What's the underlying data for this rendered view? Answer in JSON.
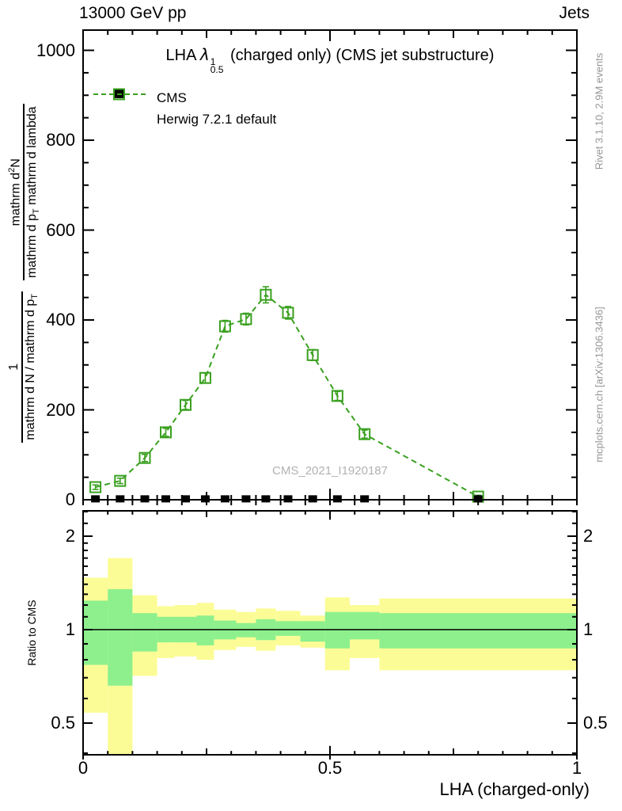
{
  "header": {
    "left": "13000 GeV pp",
    "right": "Jets"
  },
  "title": {
    "prefix": "LHA ",
    "lambda": "λ",
    "sup": "1",
    "sub": "0.5",
    "suffix": " (charged only) (CMS jet substructure)"
  },
  "legend": [
    {
      "label": "CMS",
      "marker": "filled-square",
      "color": "#000000"
    },
    {
      "label": "Herwig 7.2.1 default",
      "marker": "open-square-dashed",
      "color": "#3aa020"
    }
  ],
  "watermark": "CMS_2021_I1920187",
  "side_notes": {
    "top_right": "Rivet 3.1.10,  2.9M events",
    "bottom_right": "mcplots.cern.ch [arXiv:1306.3436]"
  },
  "ylabel_main": {
    "frac1_num": "1",
    "frac1_den_text": "mathrm d N / mathrm d p",
    "frac1_den_sub": "T",
    "frac2_num_a": "mathrm d",
    "frac2_num_sup": "2",
    "frac2_num_b": "N",
    "frac2_den_a": "mathrm d p",
    "frac2_den_sub": "T",
    "frac2_den_b": " mathrm d lambda"
  },
  "ylabel_ratio": "Ratio to CMS",
  "xlabel": "LHA (charged-only)",
  "colors": {
    "herwig": "#3aa020",
    "cms": "#000000",
    "band_yellow": "#fcfc96",
    "band_green": "#8df08d",
    "gray_text": "#969696"
  },
  "chart_data": {
    "type": "line",
    "title": "LHA lambda^1_0.5 (charged only) (CMS jet substructure)",
    "xlabel": "LHA (charged-only)",
    "xlim": [
      0,
      1
    ],
    "xticks_major": [
      0,
      0.5,
      1
    ],
    "xtick_labels": [
      "0",
      "0.5",
      "1"
    ],
    "xticks_medium": [
      0.25,
      0.75
    ],
    "xtick_minor_step": 0.05,
    "main_panel": {
      "ylim": [
        0,
        1045
      ],
      "yticks": [
        0,
        200,
        400,
        600,
        800,
        1000
      ],
      "ytick_labels": [
        "0",
        "200",
        "400",
        "600",
        "800",
        "1000"
      ],
      "ytick_minor_step": 50,
      "series": [
        {
          "name": "CMS",
          "type": "scatter",
          "marker": "filled-square",
          "color": "#000000",
          "x": [
            0.025,
            0.075,
            0.125,
            0.1675,
            0.2075,
            0.2475,
            0.2875,
            0.33,
            0.37,
            0.415,
            0.465,
            0.515,
            0.57,
            0.8
          ],
          "y": [
            2,
            2,
            2,
            2,
            2,
            2,
            2,
            2,
            2,
            2,
            2,
            2,
            2,
            2
          ]
        },
        {
          "name": "Herwig 7.2.1 default",
          "type": "line-dashed",
          "marker": "open-square",
          "color": "#3aa020",
          "x": [
            0.025,
            0.075,
            0.125,
            0.1675,
            0.2075,
            0.2475,
            0.2875,
            0.33,
            0.37,
            0.415,
            0.465,
            0.515,
            0.57,
            0.8
          ],
          "y": [
            28,
            42,
            93,
            150,
            211,
            271,
            386,
            402,
            456,
            416,
            322,
            231,
            146,
            7
          ],
          "yerr": [
            5,
            6,
            8,
            9,
            10,
            11,
            13,
            13,
            18,
            14,
            12,
            10,
            9,
            3
          ]
        }
      ]
    },
    "ratio_panel": {
      "ylabel": "Ratio to CMS",
      "yscale": "log",
      "ylim": [
        0.395,
        2.41
      ],
      "yticks": [
        0.5,
        1,
        2
      ],
      "ytick_labels": [
        "0.5",
        "1",
        "2"
      ],
      "yticks_minor": [
        0.4,
        0.6,
        0.7,
        0.8,
        0.9,
        1.1,
        1.2,
        1.3,
        1.4,
        1.5,
        1.6,
        1.7,
        1.8,
        1.9,
        2.2,
        2.4
      ],
      "reference_line": 1,
      "bin_edges": [
        0,
        0.05,
        0.1,
        0.15,
        0.185,
        0.23,
        0.265,
        0.31,
        0.35,
        0.39,
        0.44,
        0.49,
        0.54,
        0.6,
        1.0
      ],
      "bands": {
        "yellow_high": [
          1.47,
          1.7,
          1.29,
          1.19,
          1.2,
          1.22,
          1.16,
          1.14,
          1.17,
          1.15,
          1.11,
          1.27,
          1.2,
          1.26
        ],
        "green_high": [
          1.24,
          1.35,
          1.13,
          1.1,
          1.1,
          1.11,
          1.07,
          1.05,
          1.08,
          1.065,
          1.065,
          1.14,
          1.14,
          1.13
        ],
        "green_low": [
          0.77,
          0.66,
          0.85,
          0.91,
          0.91,
          0.89,
          0.93,
          0.945,
          0.925,
          0.955,
          0.915,
          0.87,
          0.93,
          0.87
        ],
        "yellow_low": [
          0.54,
          0.38,
          0.71,
          0.81,
          0.82,
          0.8,
          0.86,
          0.88,
          0.855,
          0.89,
          0.875,
          0.74,
          0.81,
          0.74
        ]
      }
    }
  }
}
